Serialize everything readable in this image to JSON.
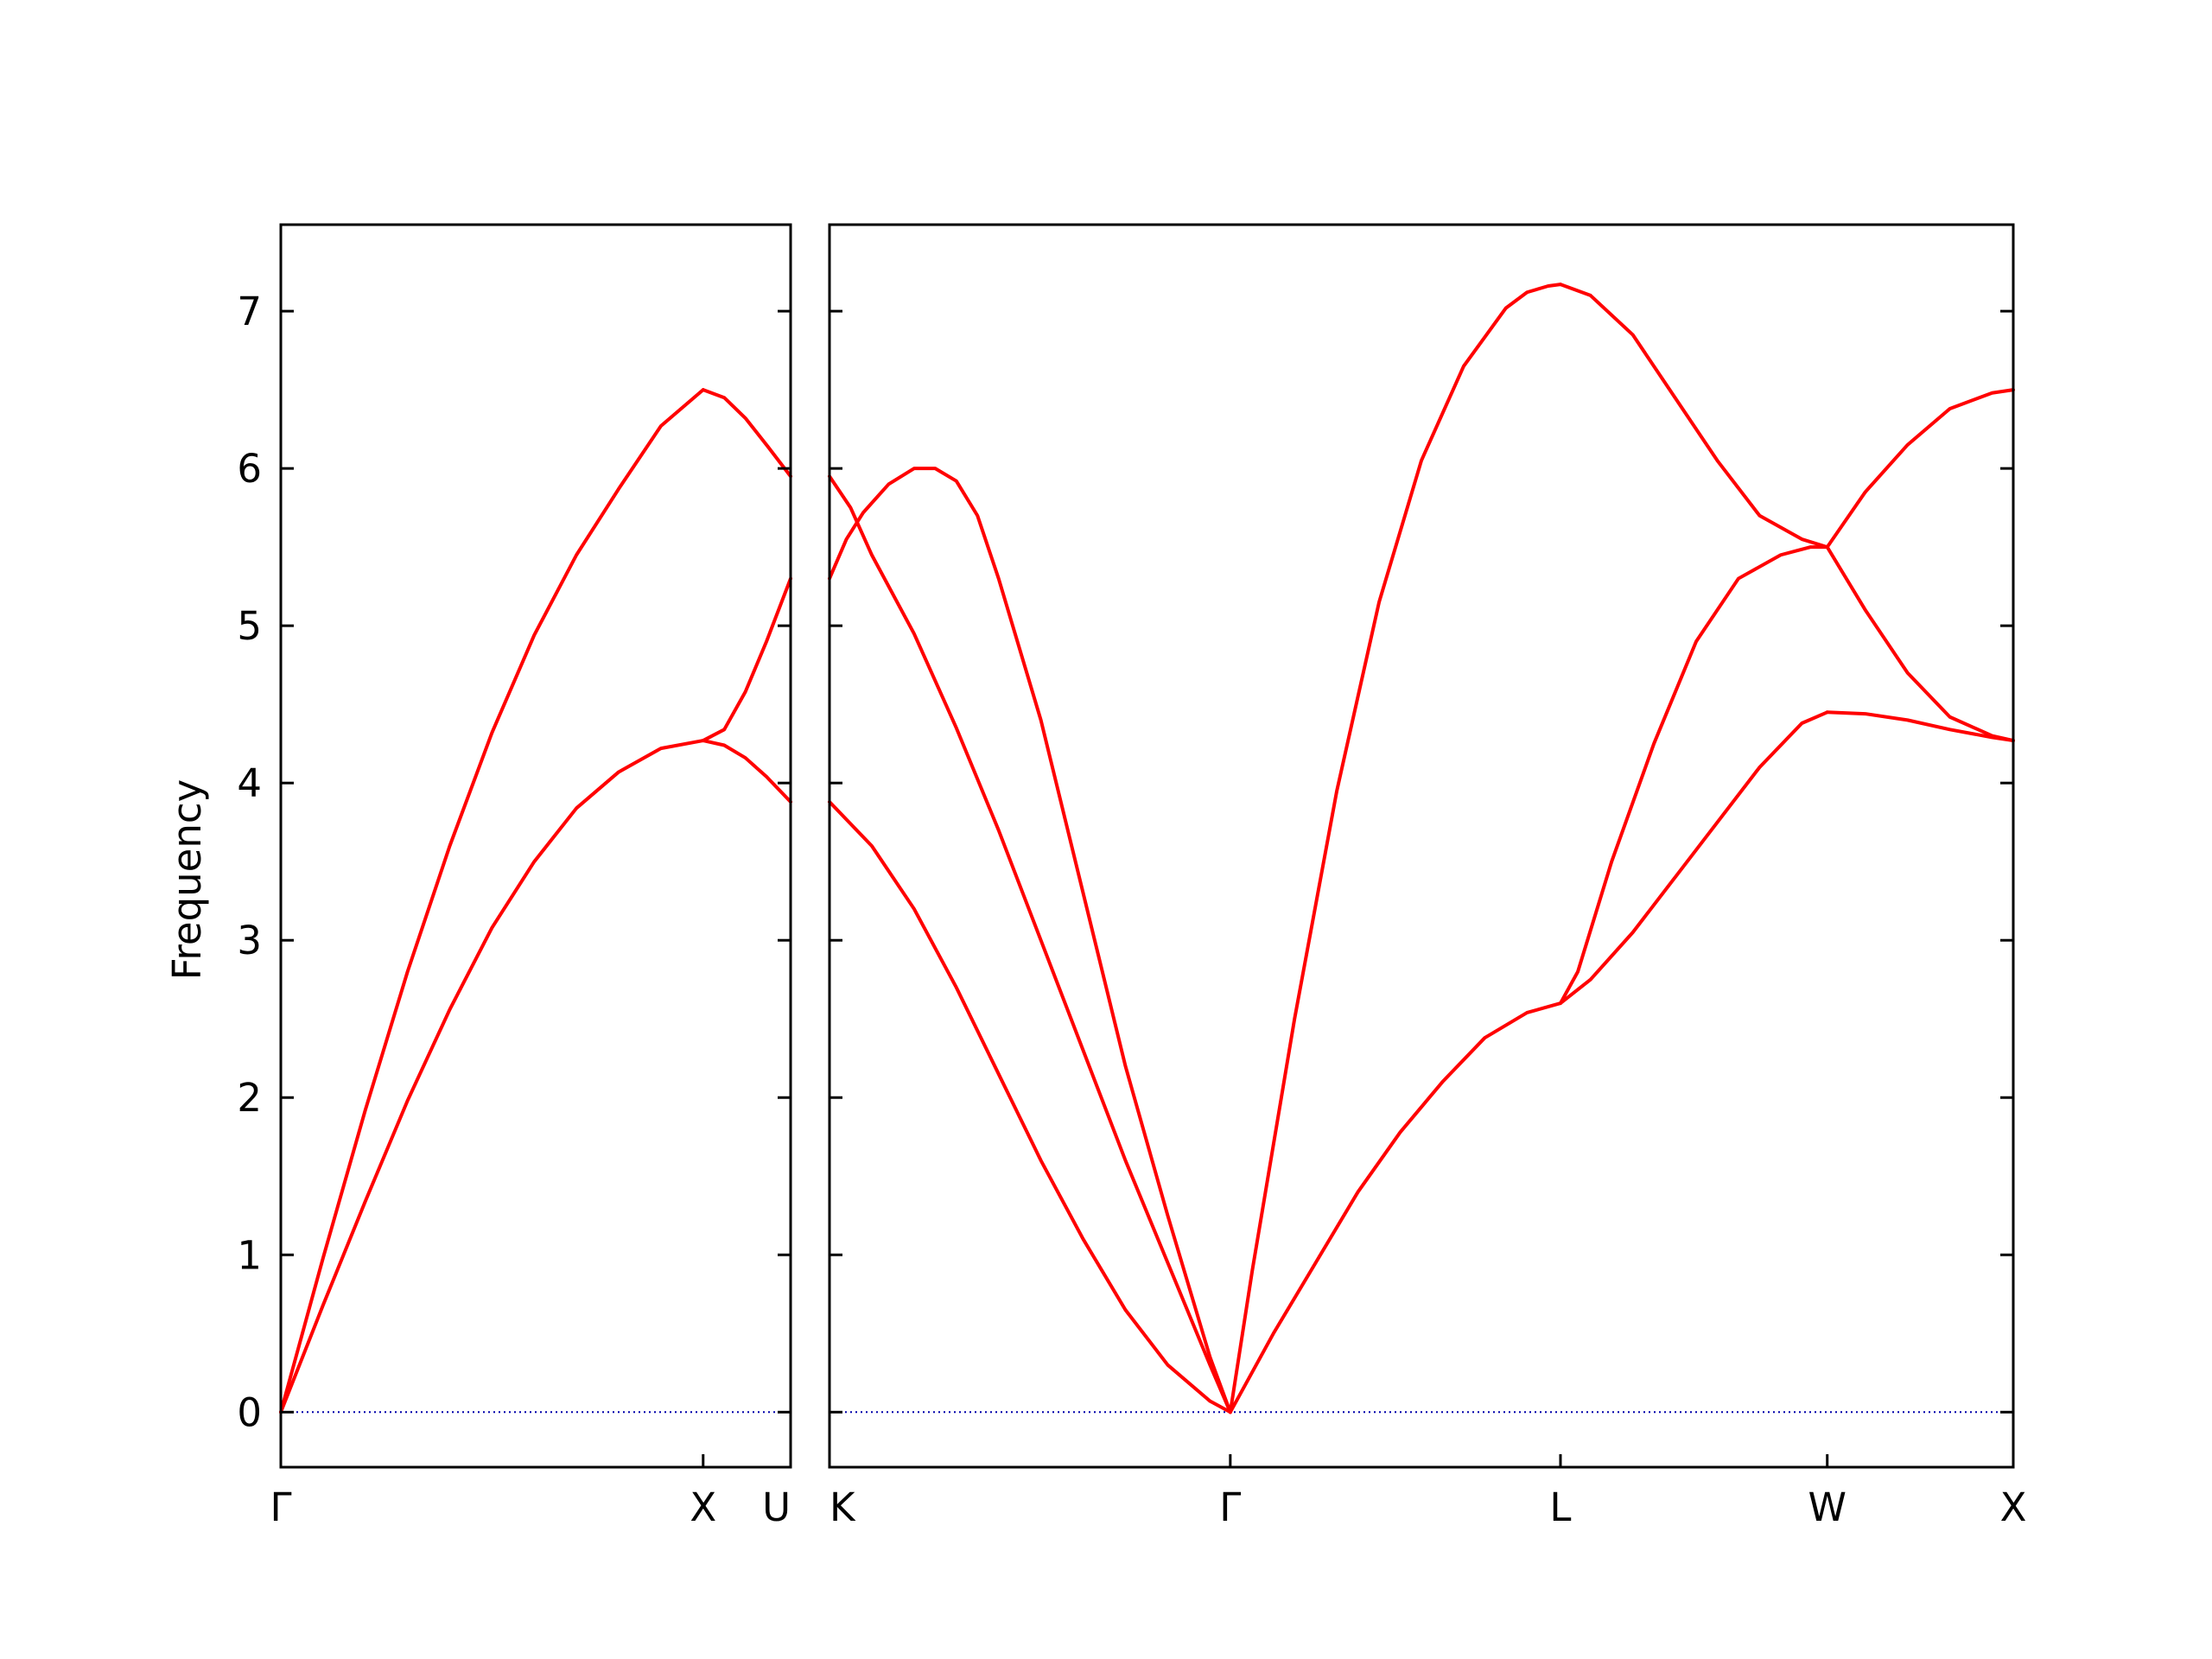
{
  "chart_data": {
    "type": "line",
    "title": "",
    "ylabel": "Frequency",
    "ylim": [
      -0.35,
      7.55
    ],
    "yticks": [
      0,
      1,
      2,
      3,
      4,
      5,
      6,
      7
    ],
    "band_color": "#ff0000",
    "zero_line_color": "#0000aa",
    "grid": false,
    "panels": [
      {
        "xlim": [
          0,
          1.2071
        ],
        "xticks": [
          {
            "x": 0,
            "label": "Γ"
          },
          {
            "x": 1.0,
            "label": "X"
          },
          {
            "x": 1.2071,
            "label": "U"
          }
        ],
        "series": [
          {
            "x": [
              0,
              0.05,
              0.1,
              0.2,
              0.3,
              0.4,
              0.5,
              0.6,
              0.7,
              0.8,
              0.9,
              1.0
            ],
            "y": [
              0,
              0.49,
              0.98,
              1.92,
              2.8,
              3.6,
              4.32,
              4.94,
              5.45,
              5.87,
              6.27,
              6.5
            ]
          },
          {
            "x": [
              1.0,
              1.05,
              1.1,
              1.15,
              1.2071
            ],
            "y": [
              6.5,
              6.45,
              6.32,
              6.15,
              5.95
            ]
          },
          {
            "x": [
              0,
              0.1,
              0.2,
              0.3,
              0.4,
              0.5,
              0.6,
              0.7,
              0.8,
              0.9,
              1.0
            ],
            "y": [
              0,
              0.68,
              1.34,
              1.98,
              2.56,
              3.08,
              3.5,
              3.84,
              4.07,
              4.22,
              4.27
            ]
          },
          {
            "x": [
              1.0,
              1.05,
              1.1,
              1.15,
              1.2071
            ],
            "y": [
              4.27,
              4.34,
              4.58,
              4.9,
              5.3
            ]
          },
          {
            "x": [
              1.0,
              1.05,
              1.1,
              1.15,
              1.2071
            ],
            "y": [
              4.27,
              4.24,
              4.16,
              4.04,
              3.88
            ]
          }
        ]
      },
      {
        "xlim": [
          0,
          2.8
        ],
        "xticks": [
          {
            "x": 0,
            "label": "K"
          },
          {
            "x": 0.948,
            "label": "Γ"
          },
          {
            "x": 1.729,
            "label": "L"
          },
          {
            "x": 2.36,
            "label": "W"
          },
          {
            "x": 2.8,
            "label": "X"
          }
        ],
        "series": [
          {
            "x": [
              0,
              0.04,
              0.08,
              0.14,
              0.2,
              0.25,
              0.3,
              0.35,
              0.4,
              0.5,
              0.6,
              0.7,
              0.8,
              0.9,
              0.948
            ],
            "y": [
              5.3,
              5.55,
              5.72,
              5.9,
              6.0,
              6.0,
              5.92,
              5.7,
              5.3,
              4.4,
              3.3,
              2.2,
              1.25,
              0.35,
              0
            ]
          },
          {
            "x": [
              0,
              0.05,
              0.1,
              0.2,
              0.3,
              0.4,
              0.5,
              0.6,
              0.7,
              0.8,
              0.9,
              0.948
            ],
            "y": [
              5.95,
              5.75,
              5.45,
              4.95,
              4.35,
              3.7,
              3.0,
              2.3,
              1.6,
              0.95,
              0.3,
              0
            ]
          },
          {
            "x": [
              0,
              0.1,
              0.2,
              0.3,
              0.4,
              0.5,
              0.6,
              0.7,
              0.8,
              0.9,
              0.948
            ],
            "y": [
              3.88,
              3.6,
              3.2,
              2.7,
              2.15,
              1.6,
              1.1,
              0.65,
              0.3,
              0.07,
              0
            ]
          },
          {
            "x": [
              0.948,
              1.0,
              1.1,
              1.2,
              1.3,
              1.4,
              1.5,
              1.6,
              1.65,
              1.7,
              1.729
            ],
            "y": [
              0,
              0.9,
              2.5,
              3.95,
              5.15,
              6.05,
              6.65,
              7.02,
              7.12,
              7.16,
              7.17
            ]
          },
          {
            "x": [
              1.729,
              1.8,
              1.9,
              2.0,
              2.1,
              2.2,
              2.3,
              2.36
            ],
            "y": [
              7.17,
              7.1,
              6.85,
              6.45,
              6.05,
              5.7,
              5.55,
              5.5
            ]
          },
          {
            "x": [
              0.948,
              1.05,
              1.15,
              1.25,
              1.35,
              1.45,
              1.55,
              1.65,
              1.729
            ],
            "y": [
              0,
              0.5,
              0.95,
              1.4,
              1.78,
              2.1,
              2.38,
              2.54,
              2.6
            ]
          },
          {
            "x": [
              1.729,
              1.77,
              1.85,
              1.95,
              2.05,
              2.15,
              2.25,
              2.32,
              2.36
            ],
            "y": [
              2.6,
              2.8,
              3.5,
              4.25,
              4.9,
              5.3,
              5.45,
              5.5,
              5.5
            ]
          },
          {
            "x": [
              1.729,
              1.8,
              1.9,
              2.0,
              2.1,
              2.2,
              2.3,
              2.36
            ],
            "y": [
              2.6,
              2.75,
              3.05,
              3.4,
              3.75,
              4.1,
              4.38,
              4.45
            ]
          },
          {
            "x": [
              2.36,
              2.45,
              2.55,
              2.65,
              2.75,
              2.8
            ],
            "y": [
              5.5,
              5.85,
              6.15,
              6.38,
              6.48,
              6.5
            ]
          },
          {
            "x": [
              2.36,
              2.45,
              2.55,
              2.65,
              2.75,
              2.8
            ],
            "y": [
              5.5,
              5.1,
              4.7,
              4.42,
              4.3,
              4.27
            ]
          },
          {
            "x": [
              2.36,
              2.45,
              2.55,
              2.65,
              2.75,
              2.8
            ],
            "y": [
              4.45,
              4.44,
              4.4,
              4.34,
              4.29,
              4.27
            ]
          }
        ]
      }
    ]
  }
}
